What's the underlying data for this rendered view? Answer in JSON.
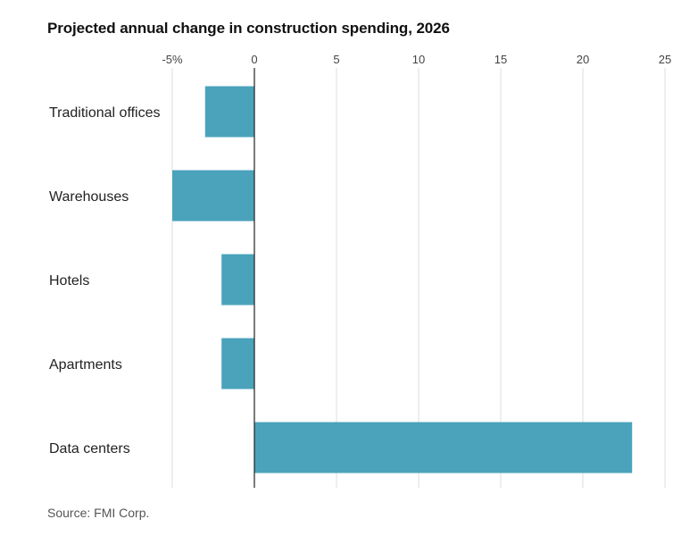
{
  "chart_data": {
    "type": "bar",
    "orientation": "horizontal",
    "title": "Projected annual change in construction spending, 2026",
    "categories": [
      "Traditional offices",
      "Warehouses",
      "Hotels",
      "Apartments",
      "Data centers"
    ],
    "values": [
      -3,
      -5,
      -2,
      -2,
      23
    ],
    "unit": "%",
    "xlim": [
      -5,
      25
    ],
    "ticks": [
      -5,
      0,
      5,
      10,
      15,
      20,
      25
    ],
    "tick_labels": [
      "-5%",
      "0",
      "5",
      "10",
      "15",
      "20",
      "25"
    ],
    "grid": true,
    "source": "Source: FMI Corp."
  },
  "colors": {
    "bar": "#4aa3bb",
    "grid": "#dddddd",
    "zero_line": "#222222"
  }
}
